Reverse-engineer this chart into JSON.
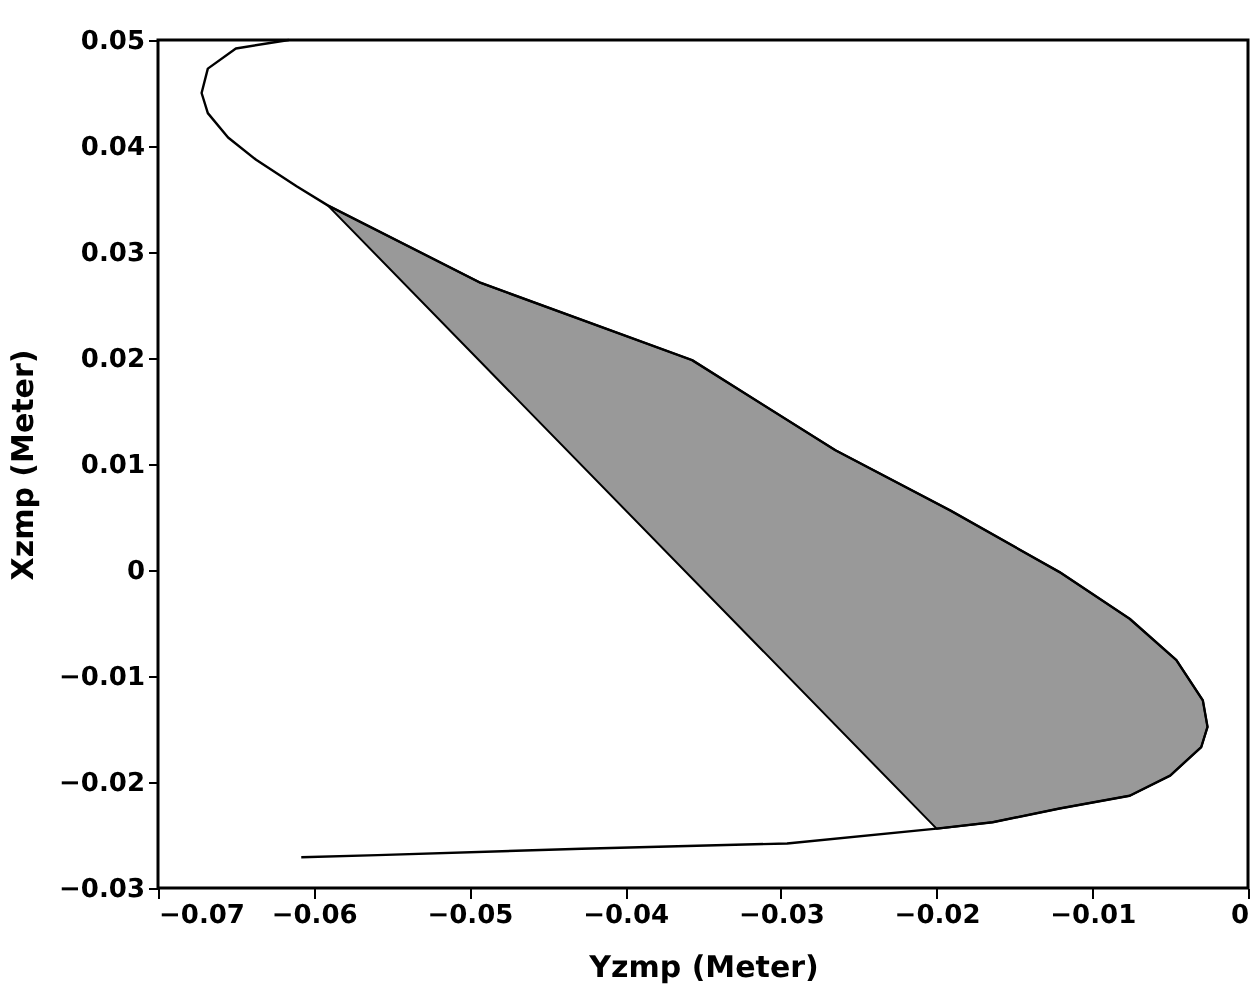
{
  "chart_data": {
    "type": "line",
    "xlabel": "Yzmp (Meter)",
    "ylabel": "Xzmp (Meter)",
    "xlim": [
      -0.07,
      0
    ],
    "ylim": [
      -0.03,
      0.05
    ],
    "xticks": [
      {
        "value": -0.07,
        "label": "−0.07"
      },
      {
        "value": -0.06,
        "label": "−0.06"
      },
      {
        "value": -0.05,
        "label": "−0.05"
      },
      {
        "value": -0.04,
        "label": "−0.04"
      },
      {
        "value": -0.03,
        "label": "−0.03"
      },
      {
        "value": -0.02,
        "label": "−0.02"
      },
      {
        "value": -0.01,
        "label": "−0.01"
      },
      0
    ],
    "yticks": [
      {
        "value": -0.03,
        "label": "−0.03"
      },
      {
        "value": -0.02,
        "label": "−0.02"
      },
      {
        "value": -0.01,
        "label": "−0.01"
      },
      0,
      0.01,
      0.02,
      0.03,
      0.04,
      0.05
    ],
    "grid": false,
    "series": [
      {
        "type": "area",
        "color": "#999999",
        "x": [
          -0.0591,
          -0.0493,
          -0.0357,
          -0.0265,
          -0.0191,
          -0.0121,
          -0.0076,
          -0.0046,
          -0.0029,
          -0.0026,
          -0.003,
          -0.005,
          -0.0076,
          -0.0121,
          -0.0164,
          -0.02
        ],
        "values": [
          0.0344,
          0.0271,
          0.0198,
          0.0113,
          0.0056,
          -0.0002,
          -0.0046,
          -0.0085,
          -0.0123,
          -0.0148,
          -0.0167,
          -0.0194,
          -0.0213,
          -0.0225,
          -0.0238,
          -0.0244
        ]
      },
      {
        "color": "#000000",
        "x": [
          -0.0616,
          -0.065,
          -0.0668,
          -0.0672,
          -0.0668,
          -0.0655,
          -0.0637,
          -0.0611,
          -0.0591,
          -0.0493,
          -0.0357,
          -0.0265,
          -0.0191,
          -0.0121,
          -0.0076,
          -0.0046,
          -0.0029,
          -0.0026,
          -0.003,
          -0.005,
          -0.0076,
          -0.0121,
          -0.0164,
          -0.02,
          -0.0296,
          -0.0428,
          -0.0559,
          -0.0608
        ],
        "values": [
          0.05,
          0.0492,
          0.0473,
          0.045,
          0.0431,
          0.0408,
          0.0387,
          0.0362,
          0.0344,
          0.0271,
          0.0198,
          0.0113,
          0.0056,
          -0.0002,
          -0.0046,
          -0.0085,
          -0.0123,
          -0.0148,
          -0.0167,
          -0.0194,
          -0.0213,
          -0.0225,
          -0.0238,
          -0.0244,
          -0.0258,
          -0.0263,
          -0.0269,
          -0.0271
        ]
      }
    ]
  }
}
